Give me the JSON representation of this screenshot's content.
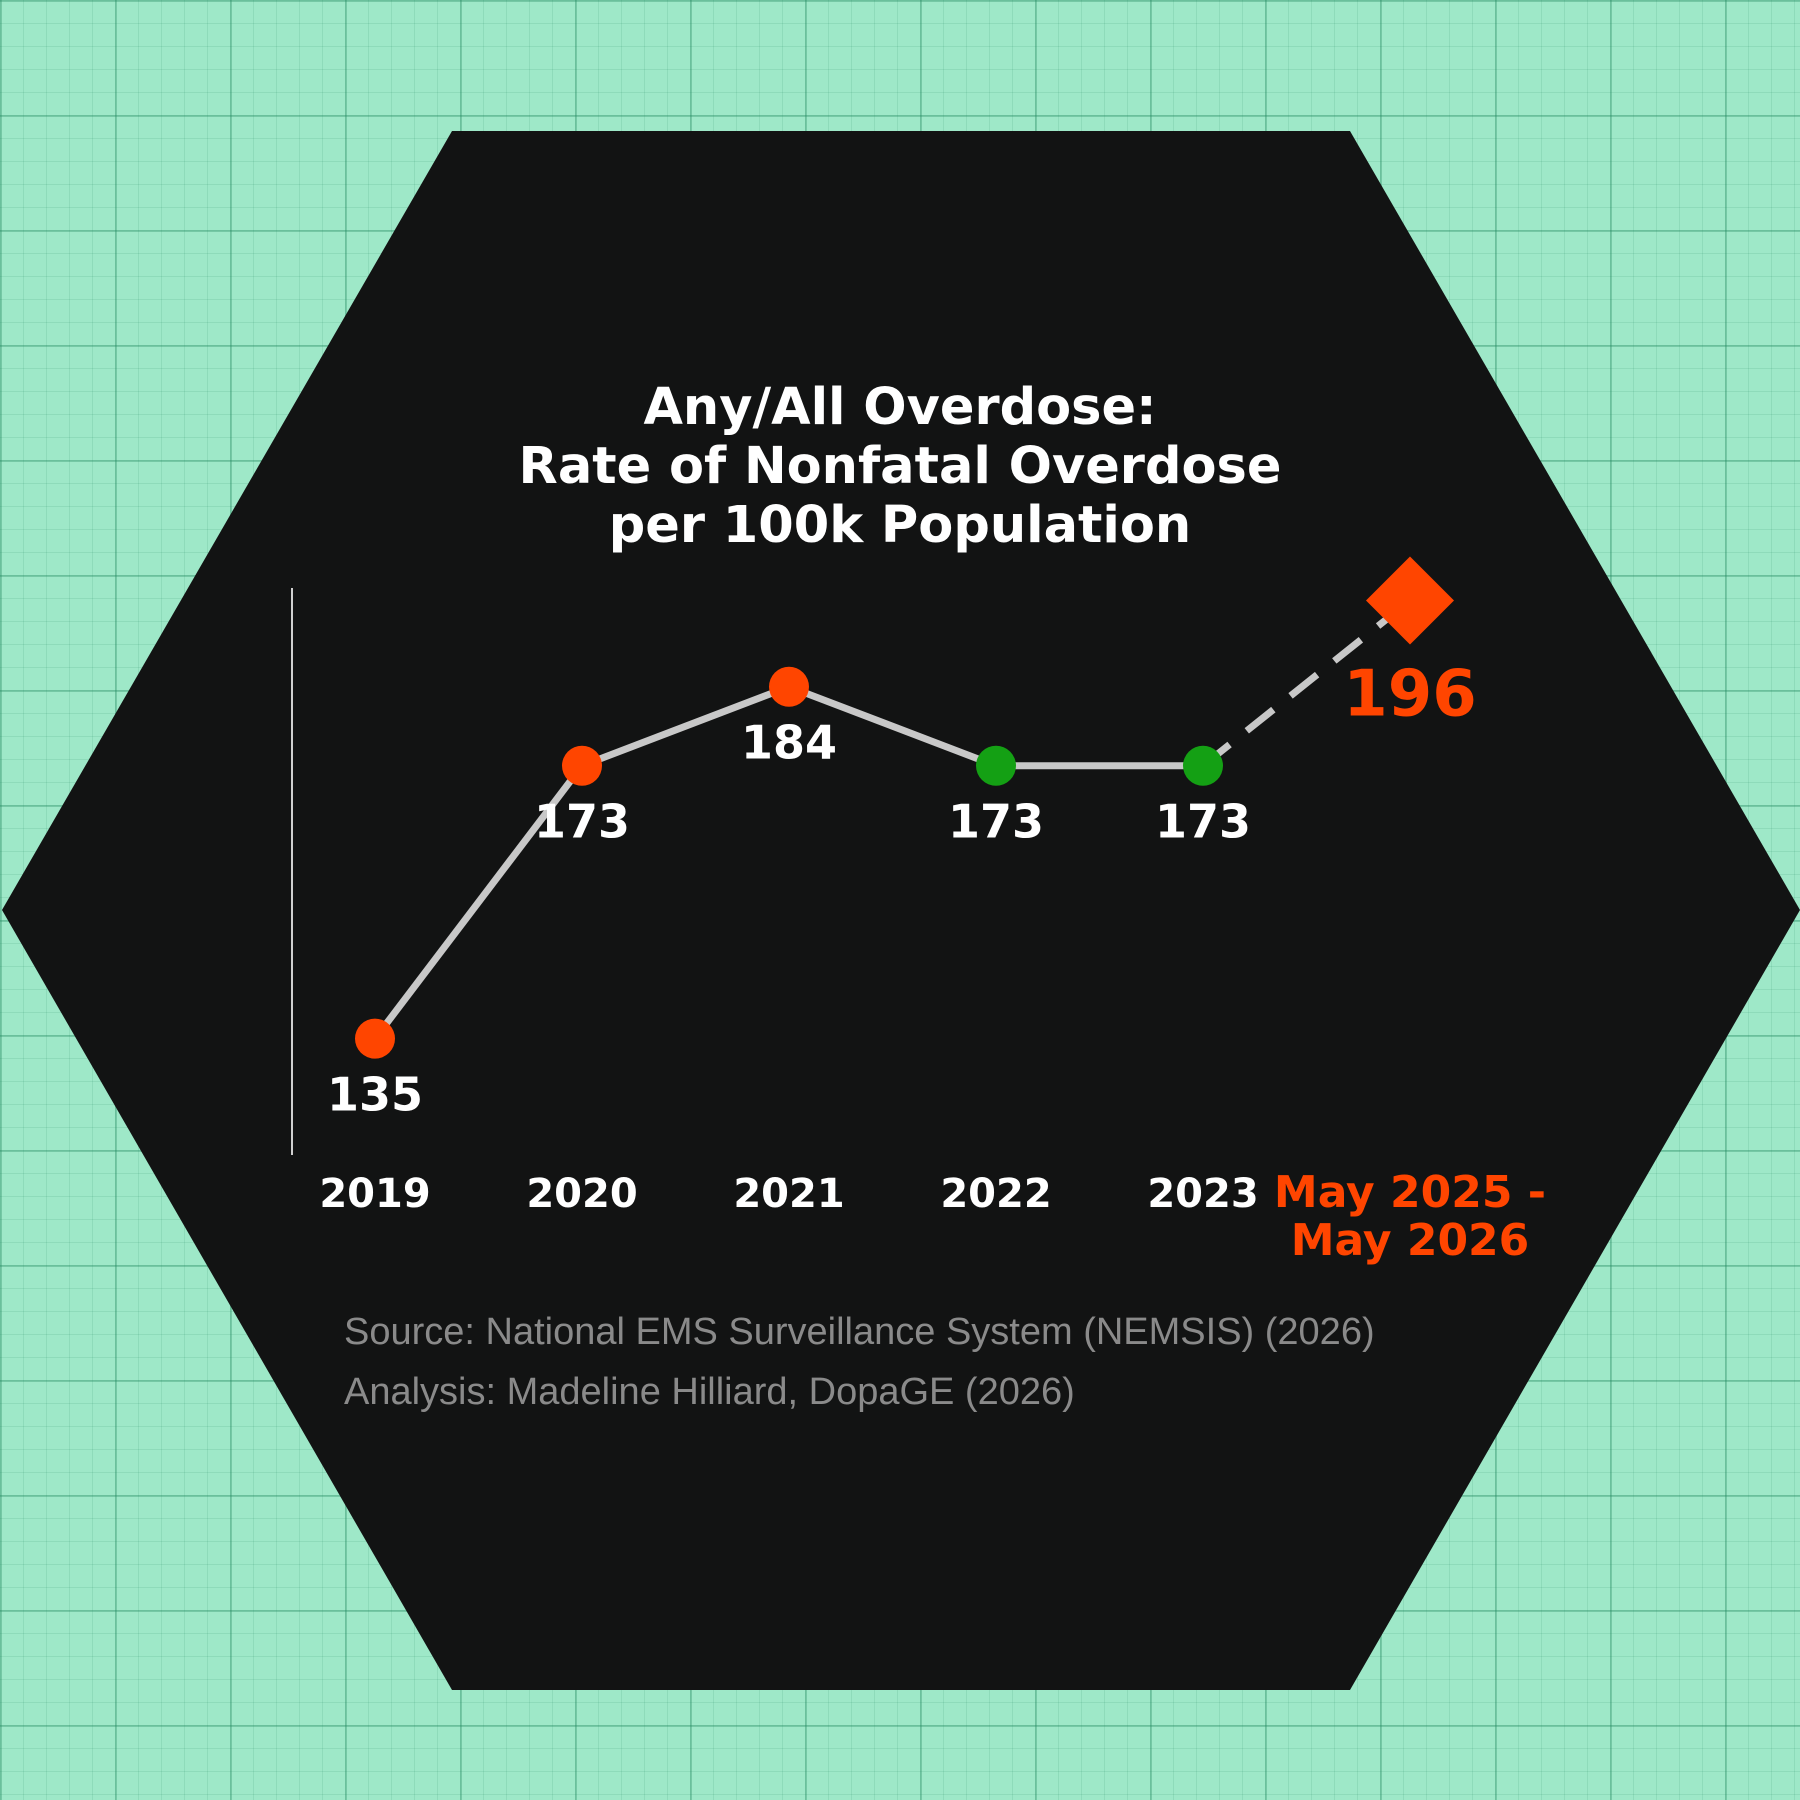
{
  "colors": {
    "background": "#9ee8c8",
    "panel": "#121313",
    "line": "#c8c8c8",
    "increase": "#ff4500",
    "no_change": "#14a014",
    "projection": "#ff4500",
    "text": "#ffffff",
    "source_text": "#8a8a8a"
  },
  "chart_data": {
    "type": "line",
    "title": [
      "Any/All Overdose:",
      "Rate of Nonfatal Overdose",
      "per 100k Population"
    ],
    "categories": [
      "2019",
      "2020",
      "2021",
      "2022",
      "2023",
      "May 2025 - May 2026"
    ],
    "category_lines": [
      [
        "2019"
      ],
      [
        "2020"
      ],
      [
        "2021"
      ],
      [
        "2022"
      ],
      [
        "2023"
      ],
      [
        "May 2025 -",
        "May 2026"
      ]
    ],
    "values": [
      135,
      173,
      184,
      173,
      173,
      196
    ],
    "labels": [
      "135",
      "173",
      "184",
      "173",
      "173",
      "196"
    ],
    "point_status": [
      "increase",
      "increase",
      "increase",
      "no_change",
      "no_change",
      "projection"
    ],
    "marker": [
      "circle",
      "circle",
      "circle",
      "circle",
      "circle",
      "diamond"
    ],
    "segment_style": [
      "solid",
      "solid",
      "solid",
      "solid",
      "dashed"
    ],
    "ylim": [
      100,
      210
    ],
    "xlabel": "",
    "ylabel": "",
    "grid": false,
    "legend": "none"
  },
  "source": {
    "line1": "Source: National EMS Surveillance System (NEMSIS) (2026)",
    "line2": "Analysis: Madeline Hilliard, DopaGE (2026)"
  }
}
